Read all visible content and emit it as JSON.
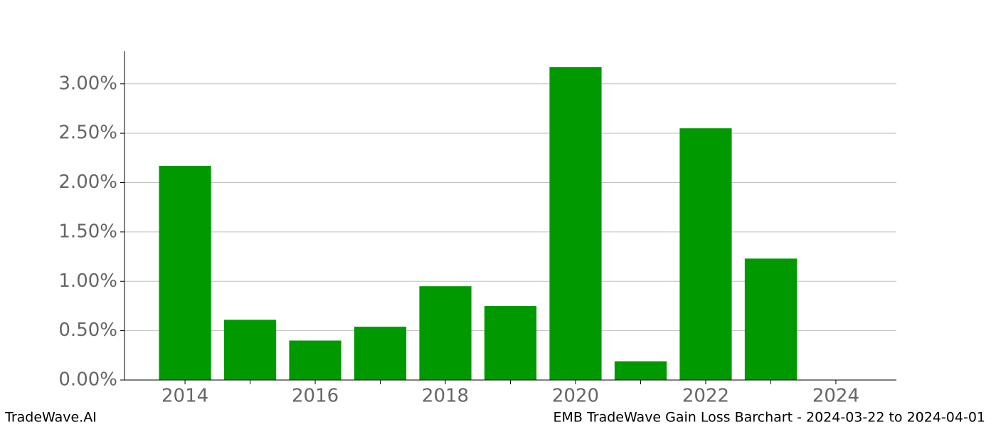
{
  "chart_data": {
    "type": "bar",
    "title": "EMB TradeWave Gain Loss Barchart - 2024-03-22 to 2024-04-01",
    "watermark": "TradeWave.AI",
    "x": [
      2014,
      2015,
      2016,
      2017,
      2018,
      2019,
      2020,
      2021,
      2022,
      2023
    ],
    "values": [
      2.17,
      0.61,
      0.4,
      0.54,
      0.95,
      0.75,
      3.17,
      0.19,
      2.55,
      1.23
    ],
    "color": "#009900",
    "bar_width": 0.8,
    "xlim": [
      2013.07,
      2024.93
    ],
    "xticks": [
      2014,
      2016,
      2018,
      2020,
      2022,
      2024
    ],
    "xminorticks": [
      2015,
      2017,
      2019,
      2021,
      2023
    ],
    "ylim": [
      0,
      3.33
    ],
    "yticks": [
      {
        "value": 0,
        "label": "0.00%"
      },
      {
        "value": 0.5,
        "label": "0.50%"
      },
      {
        "value": 1,
        "label": "1.00%"
      },
      {
        "value": 1.5,
        "label": "1.50%"
      },
      {
        "value": 2,
        "label": "2.00%"
      },
      {
        "value": 2.5,
        "label": "2.50%"
      },
      {
        "value": 3,
        "label": "3.00%"
      }
    ],
    "grid": true
  }
}
